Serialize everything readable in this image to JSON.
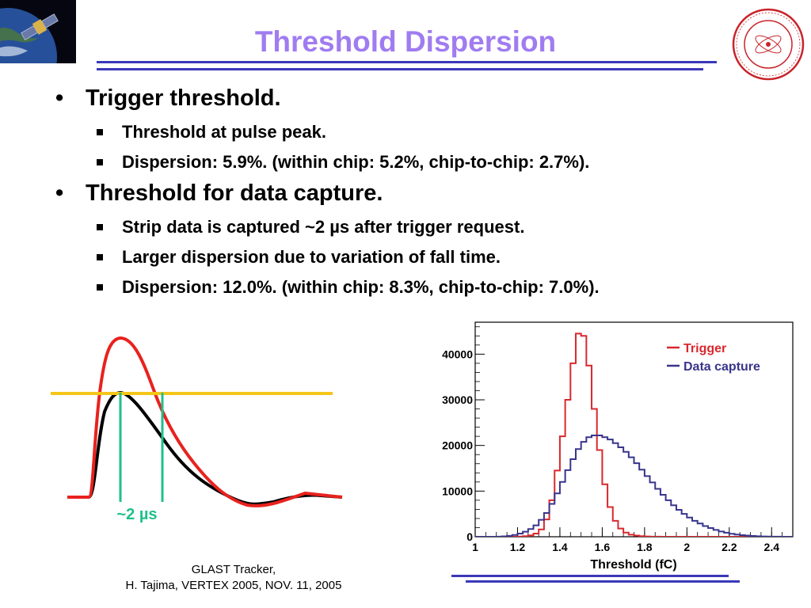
{
  "title": "Threshold Dispersion",
  "bullets": [
    {
      "text": "Trigger threshold.",
      "sub": [
        "Threshold at pulse peak.",
        "Dispersion: 5.9%. (within chip: 5.2%, chip-to-chip: 2.7%)."
      ]
    },
    {
      "text": "Threshold for data capture.",
      "sub": [
        "Strip data is captured ~2 µs after trigger request.",
        "Larger dispersion due to variation of fall time.",
        "Dispersion: 12.0%. (within chip: 8.3%, chip-to-chip: 7.0%)."
      ]
    }
  ],
  "pulse_label": "~2 µs",
  "footer": {
    "line1": "GLAST Tracker,",
    "line2": "H. Tajima, VERTEX 2005, NOV. 11, 2005"
  },
  "colors": {
    "title": "#a07cf0",
    "rule": "#3b38b8",
    "trigger": "#d8282e",
    "capture": "#38348c",
    "threshold_line": "#f5c518",
    "marker": "#1ec089",
    "pulse_red": "#e8221e"
  },
  "chart_data": {
    "type": "histogram",
    "xlabel": "Threshold (fC)",
    "ylabel": "",
    "xlim": [
      1.0,
      2.5
    ],
    "ylim": [
      0,
      47000
    ],
    "xticks": [
      "1",
      "1.2",
      "1.4",
      "1.6",
      "1.8",
      "2",
      "2.2",
      "2.4"
    ],
    "yticks": [
      "0",
      "10000",
      "20000",
      "30000",
      "40000"
    ],
    "legend_position": "top-right",
    "bin_width": 0.025,
    "x_start": 1.0,
    "series": [
      {
        "name": "Trigger",
        "color": "#d8282e",
        "values": [
          0,
          0,
          0,
          0,
          0,
          0,
          0,
          10,
          40,
          120,
          300,
          700,
          1600,
          3800,
          8000,
          14500,
          22000,
          30000,
          38000,
          44500,
          44000,
          37500,
          28000,
          19000,
          11500,
          6500,
          3500,
          1800,
          900,
          450,
          250,
          120,
          60,
          30,
          15,
          8,
          4,
          2,
          0,
          0,
          0,
          0,
          0,
          0,
          0,
          0,
          0,
          0,
          0,
          0,
          0,
          0,
          0,
          0,
          0,
          0,
          0,
          0,
          0,
          0
        ]
      },
      {
        "name": "Data capture",
        "color": "#38348c",
        "values": [
          0,
          0,
          0,
          10,
          30,
          80,
          200,
          400,
          700,
          1100,
          1700,
          2500,
          3700,
          5200,
          7200,
          9500,
          12000,
          14600,
          17000,
          19200,
          20800,
          21800,
          22200,
          22200,
          21800,
          21300,
          20500,
          19600,
          18600,
          17400,
          16100,
          14700,
          13300,
          11900,
          10500,
          9200,
          8000,
          6900,
          5900,
          5000,
          4200,
          3500,
          2900,
          2350,
          1900,
          1500,
          1150,
          880,
          660,
          480,
          350,
          250,
          170,
          110,
          70,
          45,
          25,
          15,
          8,
          4
        ]
      }
    ]
  }
}
